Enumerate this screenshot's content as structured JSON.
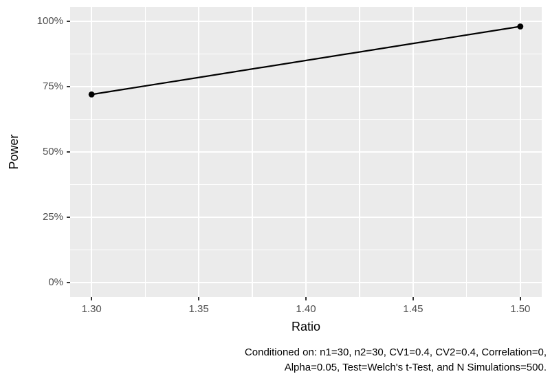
{
  "chart_data": {
    "type": "line",
    "title": "",
    "xlabel": "Ratio",
    "ylabel": "Power",
    "series": [
      {
        "name": "Power",
        "x": [
          1.3,
          1.5
        ],
        "y": [
          72,
          98
        ]
      }
    ],
    "x_ticks": [
      {
        "value": 1.3,
        "label": "1.30"
      },
      {
        "value": 1.35,
        "label": "1.35"
      },
      {
        "value": 1.4,
        "label": "1.40"
      },
      {
        "value": 1.45,
        "label": "1.45"
      },
      {
        "value": 1.5,
        "label": "1.50"
      }
    ],
    "y_ticks": [
      {
        "value": 0,
        "label": "0%"
      },
      {
        "value": 25,
        "label": "25%"
      },
      {
        "value": 50,
        "label": "50%"
      },
      {
        "value": 75,
        "label": "75%"
      },
      {
        "value": 100,
        "label": "100%"
      }
    ],
    "x_minor": [
      1.325,
      1.375,
      1.425,
      1.475
    ],
    "y_minor": [
      12.5,
      37.5,
      62.5,
      87.5
    ],
    "xlim": [
      1.29,
      1.51
    ],
    "ylim": [
      -5.5,
      105.5
    ],
    "y_unit": "percent",
    "grid": {
      "major": true,
      "minor": true
    },
    "legend": "none",
    "colors": {
      "panel_bg": "#ebebeb",
      "grid": "#ffffff",
      "line": "#000000",
      "point": "#000000",
      "tick_label": "#4d4d4d",
      "axis_title": "#000000",
      "tick_mark": "#333333",
      "caption": "#000000"
    }
  },
  "caption": {
    "line1": "Conditioned on: n1=30, n2=30, CV1=0.4, CV2=0.4, Correlation=0,",
    "line2": "Alpha=0.05, Test=Welch's t-Test, and N Simulations=500."
  }
}
